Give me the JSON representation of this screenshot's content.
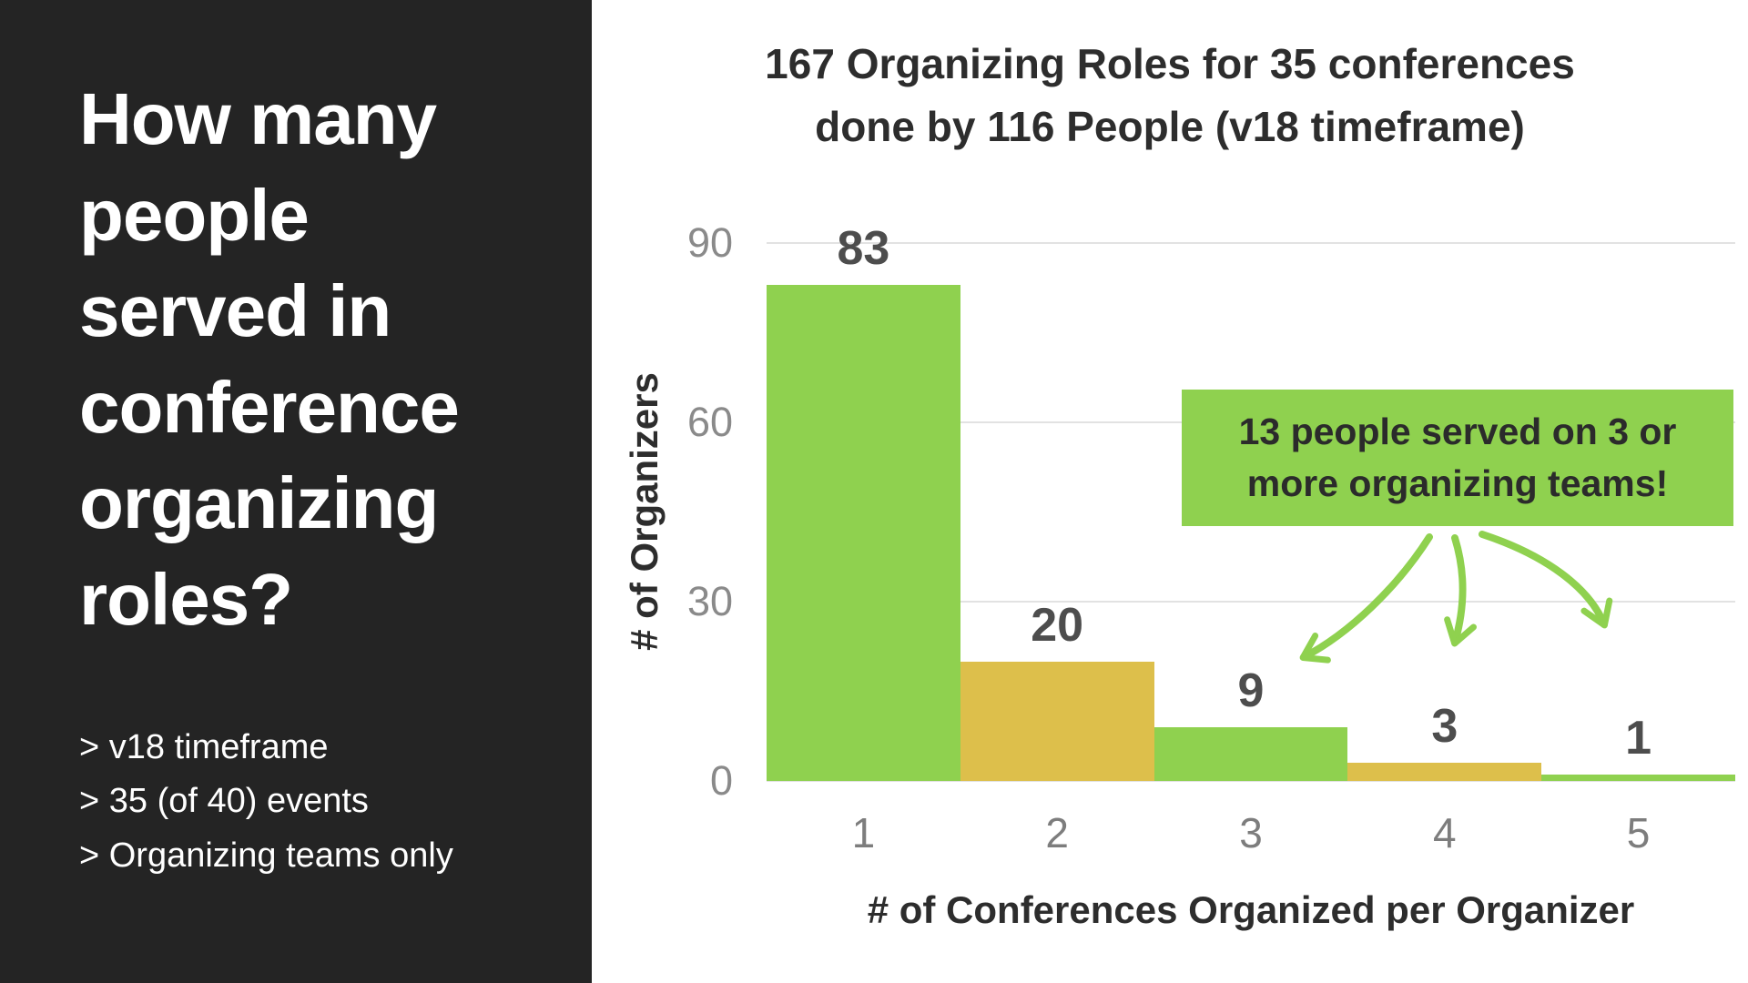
{
  "left_panel": {
    "heading": "How many people served in conference organizing roles?",
    "bullets": [
      "> v18 timeframe",
      "> 35 (of 40) events",
      "> Organizing teams only"
    ]
  },
  "chart_data": {
    "type": "bar",
    "title": "167 Organizing Roles for 35 conferences done by 116 People (v18 timeframe)",
    "title_lines": [
      "167 Organizing Roles for 35 conferences",
      "done by 116 People (v18 timeframe)"
    ],
    "categories": [
      "1",
      "2",
      "3",
      "4",
      "5"
    ],
    "values": [
      83,
      20,
      9,
      3,
      1
    ],
    "bar_colors": [
      "#8FD14F",
      "#DDBF4B",
      "#8FD14F",
      "#DDBF4B",
      "#8FD14F"
    ],
    "xlabel": "# of Conferences Organized per Organizer",
    "ylabel": "# of Organizers",
    "ylim": [
      0,
      90
    ],
    "yticks": [
      0,
      30,
      60,
      90
    ],
    "grid": "horizontal",
    "legend": "none",
    "annotation": {
      "text": "13 people served on 3 or more organizing teams!",
      "lines": [
        "13 people served on 3 or",
        "more organizing teams!"
      ],
      "points_to_categories": [
        "3",
        "4",
        "5"
      ]
    }
  },
  "colors": {
    "green": "#8FD14F",
    "gold": "#DDBF4B",
    "panel_bg": "#242424",
    "title_text": "#2D2D2D",
    "tick_text": "#8A8A8A",
    "bar_label_text": "#4D4D4D",
    "gridline": "#E2E2E2",
    "callout_text": "#2B2B2B"
  }
}
